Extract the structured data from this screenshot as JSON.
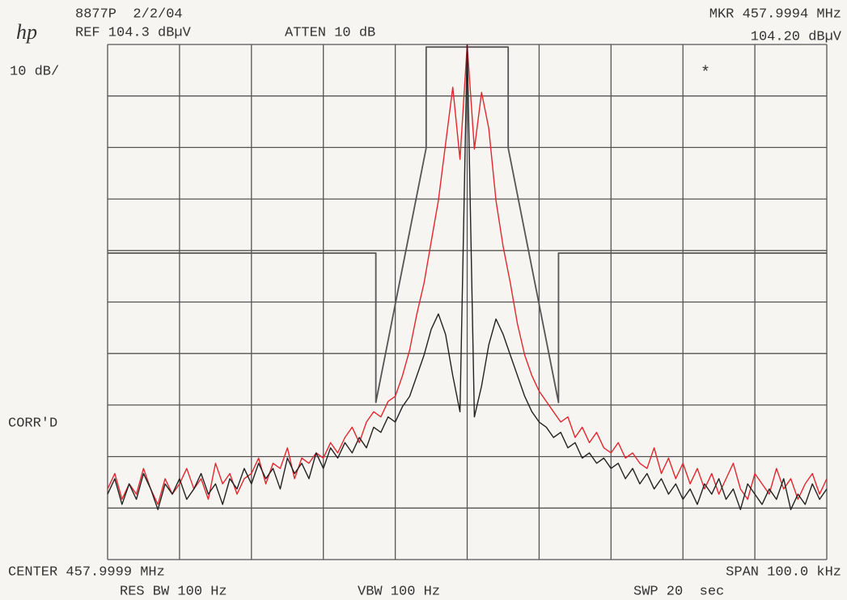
{
  "chart_data": {
    "type": "line",
    "annotations": {
      "logo": "hp",
      "id_date": "8877P  2/2/04",
      "ref": "REF 104.3 dBµV",
      "atten": "ATTEN 10 dB",
      "marker_freq": "MKR 457.9994 MHz",
      "marker_level": "104.20 dBµV",
      "scale": "10 dB/",
      "corr": "CORR'D",
      "center": "CENTER 457.9999 MHz",
      "span": "SPAN 100.0 kHz",
      "rbw": "RES BW 100 Hz",
      "vbw": "VBW 100 Hz",
      "sweep": "SWP 20  sec"
    },
    "xlim": [
      -50,
      50
    ],
    "ylim": [
      4.3,
      104.3
    ],
    "xticks": [
      -50,
      -40,
      -30,
      -20,
      -10,
      0,
      10,
      20,
      30,
      40,
      50
    ],
    "yticks": [
      4.3,
      14.3,
      24.3,
      34.3,
      44.3,
      54.3,
      64.3,
      74.3,
      84.3,
      94.3,
      104.3
    ],
    "grid": true,
    "tick_labels": false,
    "x": [
      -50,
      -49,
      -48,
      -47,
      -46,
      -45,
      -44,
      -43,
      -42,
      -41,
      -40,
      -39,
      -38,
      -37,
      -36,
      -35,
      -34,
      -33,
      -32,
      -31,
      -30,
      -29,
      -28,
      -27,
      -26,
      -25,
      -24,
      -23,
      -22,
      -21,
      -20,
      -19,
      -18,
      -17,
      -16,
      -15,
      -14,
      -13,
      -12,
      -11,
      -10,
      -9,
      -8,
      -7,
      -6,
      -5,
      -4,
      -3,
      -2,
      -1,
      0,
      1,
      2,
      3,
      4,
      5,
      6,
      7,
      8,
      9,
      10,
      11,
      12,
      13,
      14,
      15,
      16,
      17,
      18,
      19,
      20,
      21,
      22,
      23,
      24,
      25,
      26,
      27,
      28,
      29,
      30,
      31,
      32,
      33,
      34,
      35,
      36,
      37,
      38,
      39,
      40,
      41,
      42,
      43,
      44,
      45,
      46,
      47,
      48,
      49,
      50
    ],
    "series": [
      {
        "color": "#e3262c",
        "values": [
          18,
          21,
          16,
          19,
          17,
          22,
          18,
          15,
          20,
          17,
          19,
          22,
          18,
          20,
          16,
          23,
          19,
          21,
          17,
          20,
          21,
          24,
          19,
          23,
          22,
          26,
          20,
          24,
          23,
          25,
          24,
          27,
          25,
          28,
          30,
          27,
          31,
          33,
          32,
          35,
          36,
          40,
          45,
          52,
          58,
          66,
          74,
          85,
          96,
          82,
          104.2,
          84,
          95,
          88,
          74,
          65,
          58,
          50,
          44,
          40,
          37,
          35,
          33,
          31,
          32,
          28,
          30,
          27,
          29,
          26,
          25,
          27,
          24,
          25,
          23,
          22,
          26,
          21,
          24,
          20,
          23,
          19,
          22,
          18,
          21,
          17,
          20,
          23,
          18,
          16,
          21,
          19,
          17,
          22,
          18,
          20,
          16,
          19,
          21,
          17,
          20
        ]
      },
      {
        "color": "#222222",
        "values": [
          17,
          20,
          15,
          19,
          16,
          21,
          18,
          14,
          19,
          17,
          20,
          16,
          18,
          21,
          17,
          19,
          15,
          20,
          18,
          22,
          19,
          23,
          20,
          22,
          18,
          24,
          21,
          23,
          20,
          25,
          22,
          26,
          24,
          27,
          25,
          28,
          26,
          30,
          29,
          32,
          31,
          34,
          36,
          40,
          44,
          49,
          52,
          48,
          40,
          33,
          104.2,
          32,
          38,
          46,
          51,
          48,
          44,
          40,
          36,
          33,
          31,
          30,
          28,
          29,
          26,
          27,
          24,
          25,
          23,
          24,
          22,
          23,
          20,
          22,
          19,
          21,
          18,
          20,
          17,
          19,
          16,
          18,
          15,
          19,
          17,
          20,
          16,
          18,
          14,
          19,
          17,
          15,
          18,
          16,
          20,
          14,
          17,
          15,
          19,
          16,
          18
        ]
      }
    ],
    "limit_line": {
      "color": "#555555",
      "x": [
        -50,
        -12.7,
        -12.7,
        -5.7,
        -5.7,
        5.7,
        5.7,
        12.7,
        12.7,
        50
      ],
      "values": [
        63.8,
        63.8,
        34.8,
        84.2,
        103.8,
        103.8,
        84.2,
        34.8,
        63.8,
        63.8
      ]
    }
  }
}
